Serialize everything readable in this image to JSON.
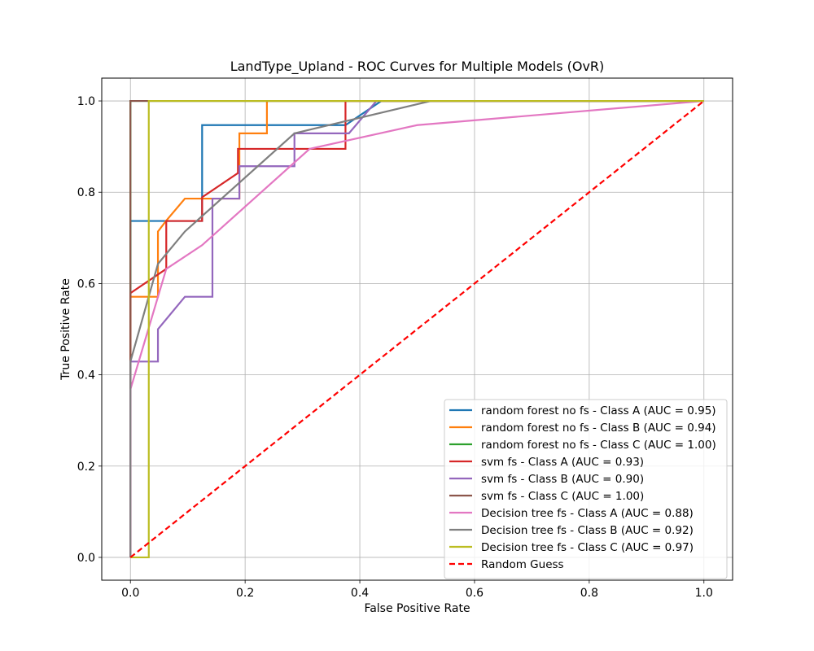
{
  "chart_data": {
    "type": "line",
    "title": "LandType_Upland - ROC Curves for Multiple Models (OvR)",
    "xlabel": "False Positive Rate",
    "ylabel": "True Positive Rate",
    "xlim": [
      -0.05,
      1.05
    ],
    "ylim": [
      -0.05,
      1.05
    ],
    "xticks": [
      "0.0",
      "0.2",
      "0.4",
      "0.6",
      "0.8",
      "1.0"
    ],
    "yticks": [
      "0.0",
      "0.2",
      "0.4",
      "0.6",
      "0.8",
      "1.0"
    ],
    "grid": true,
    "legend_position": "lower-right",
    "series": [
      {
        "name": "random forest no fs - Class A (AUC = 0.95)",
        "color": "#1f77b4",
        "dash": "solid",
        "points": [
          [
            0,
            0
          ],
          [
            0,
            0.737
          ],
          [
            0.125,
            0.737
          ],
          [
            0.125,
            0.947
          ],
          [
            0.375,
            0.947
          ],
          [
            0.4375,
            1.0
          ],
          [
            1.0,
            1.0
          ]
        ]
      },
      {
        "name": "random forest no fs - Class B (AUC = 0.94)",
        "color": "#ff7f0e",
        "dash": "solid",
        "points": [
          [
            0,
            0
          ],
          [
            0,
            0.571
          ],
          [
            0.048,
            0.571
          ],
          [
            0.048,
            0.714
          ],
          [
            0.062,
            0.737
          ],
          [
            0.095,
            0.786
          ],
          [
            0.143,
            0.786
          ],
          [
            0.19,
            0.786
          ],
          [
            0.19,
            0.929
          ],
          [
            0.238,
            0.929
          ],
          [
            0.238,
            1.0
          ],
          [
            1.0,
            1.0
          ]
        ]
      },
      {
        "name": "random forest no fs - Class C (AUC = 1.00)",
        "color": "#2ca02c",
        "dash": "solid",
        "points": [
          [
            0,
            0
          ],
          [
            0,
            1.0
          ],
          [
            1.0,
            1.0
          ]
        ]
      },
      {
        "name": "svm fs - Class A (AUC = 0.93)",
        "color": "#d62728",
        "dash": "solid",
        "points": [
          [
            0,
            0
          ],
          [
            0,
            0.579
          ],
          [
            0.0625,
            0.632
          ],
          [
            0.0625,
            0.737
          ],
          [
            0.125,
            0.737
          ],
          [
            0.125,
            0.789
          ],
          [
            0.1875,
            0.842
          ],
          [
            0.1875,
            0.895
          ],
          [
            0.375,
            0.895
          ],
          [
            0.375,
            1.0
          ],
          [
            1.0,
            1.0
          ]
        ]
      },
      {
        "name": "svm fs - Class B (AUC = 0.90)",
        "color": "#9467bd",
        "dash": "solid",
        "points": [
          [
            0,
            0
          ],
          [
            0,
            0.429
          ],
          [
            0.048,
            0.429
          ],
          [
            0.048,
            0.5
          ],
          [
            0.095,
            0.571
          ],
          [
            0.143,
            0.571
          ],
          [
            0.143,
            0.786
          ],
          [
            0.19,
            0.786
          ],
          [
            0.19,
            0.857
          ],
          [
            0.286,
            0.857
          ],
          [
            0.286,
            0.929
          ],
          [
            0.381,
            0.929
          ],
          [
            0.429,
            1.0
          ],
          [
            1.0,
            1.0
          ]
        ]
      },
      {
        "name": "svm fs - Class C (AUC = 1.00)",
        "color": "#8c564b",
        "dash": "solid",
        "points": [
          [
            0,
            0
          ],
          [
            0,
            1.0
          ],
          [
            1.0,
            1.0
          ]
        ]
      },
      {
        "name": "Decision tree fs - Class A (AUC = 0.88)",
        "color": "#e377c2",
        "dash": "solid",
        "points": [
          [
            0,
            0
          ],
          [
            0,
            0.368
          ],
          [
            0.0625,
            0.632
          ],
          [
            0.125,
            0.684
          ],
          [
            0.3125,
            0.895
          ],
          [
            0.5,
            0.947
          ],
          [
            1.0,
            1.0
          ]
        ]
      },
      {
        "name": "Decision tree fs - Class B (AUC = 0.92)",
        "color": "#7f7f7f",
        "dash": "solid",
        "points": [
          [
            0,
            0
          ],
          [
            0,
            0.429
          ],
          [
            0.048,
            0.643
          ],
          [
            0.095,
            0.714
          ],
          [
            0.286,
            0.929
          ],
          [
            0.524,
            1.0
          ],
          [
            1.0,
            1.0
          ]
        ]
      },
      {
        "name": "Decision tree fs - Class C (AUC = 0.97)",
        "color": "#bcbd22",
        "dash": "solid",
        "points": [
          [
            0,
            0
          ],
          [
            0.032,
            0
          ],
          [
            0.032,
            1.0
          ],
          [
            1.0,
            1.0
          ]
        ]
      },
      {
        "name": "Random Guess",
        "color": "#ff0000",
        "dash": "dashed",
        "points": [
          [
            0,
            0
          ],
          [
            1.0,
            1.0
          ]
        ]
      }
    ]
  }
}
